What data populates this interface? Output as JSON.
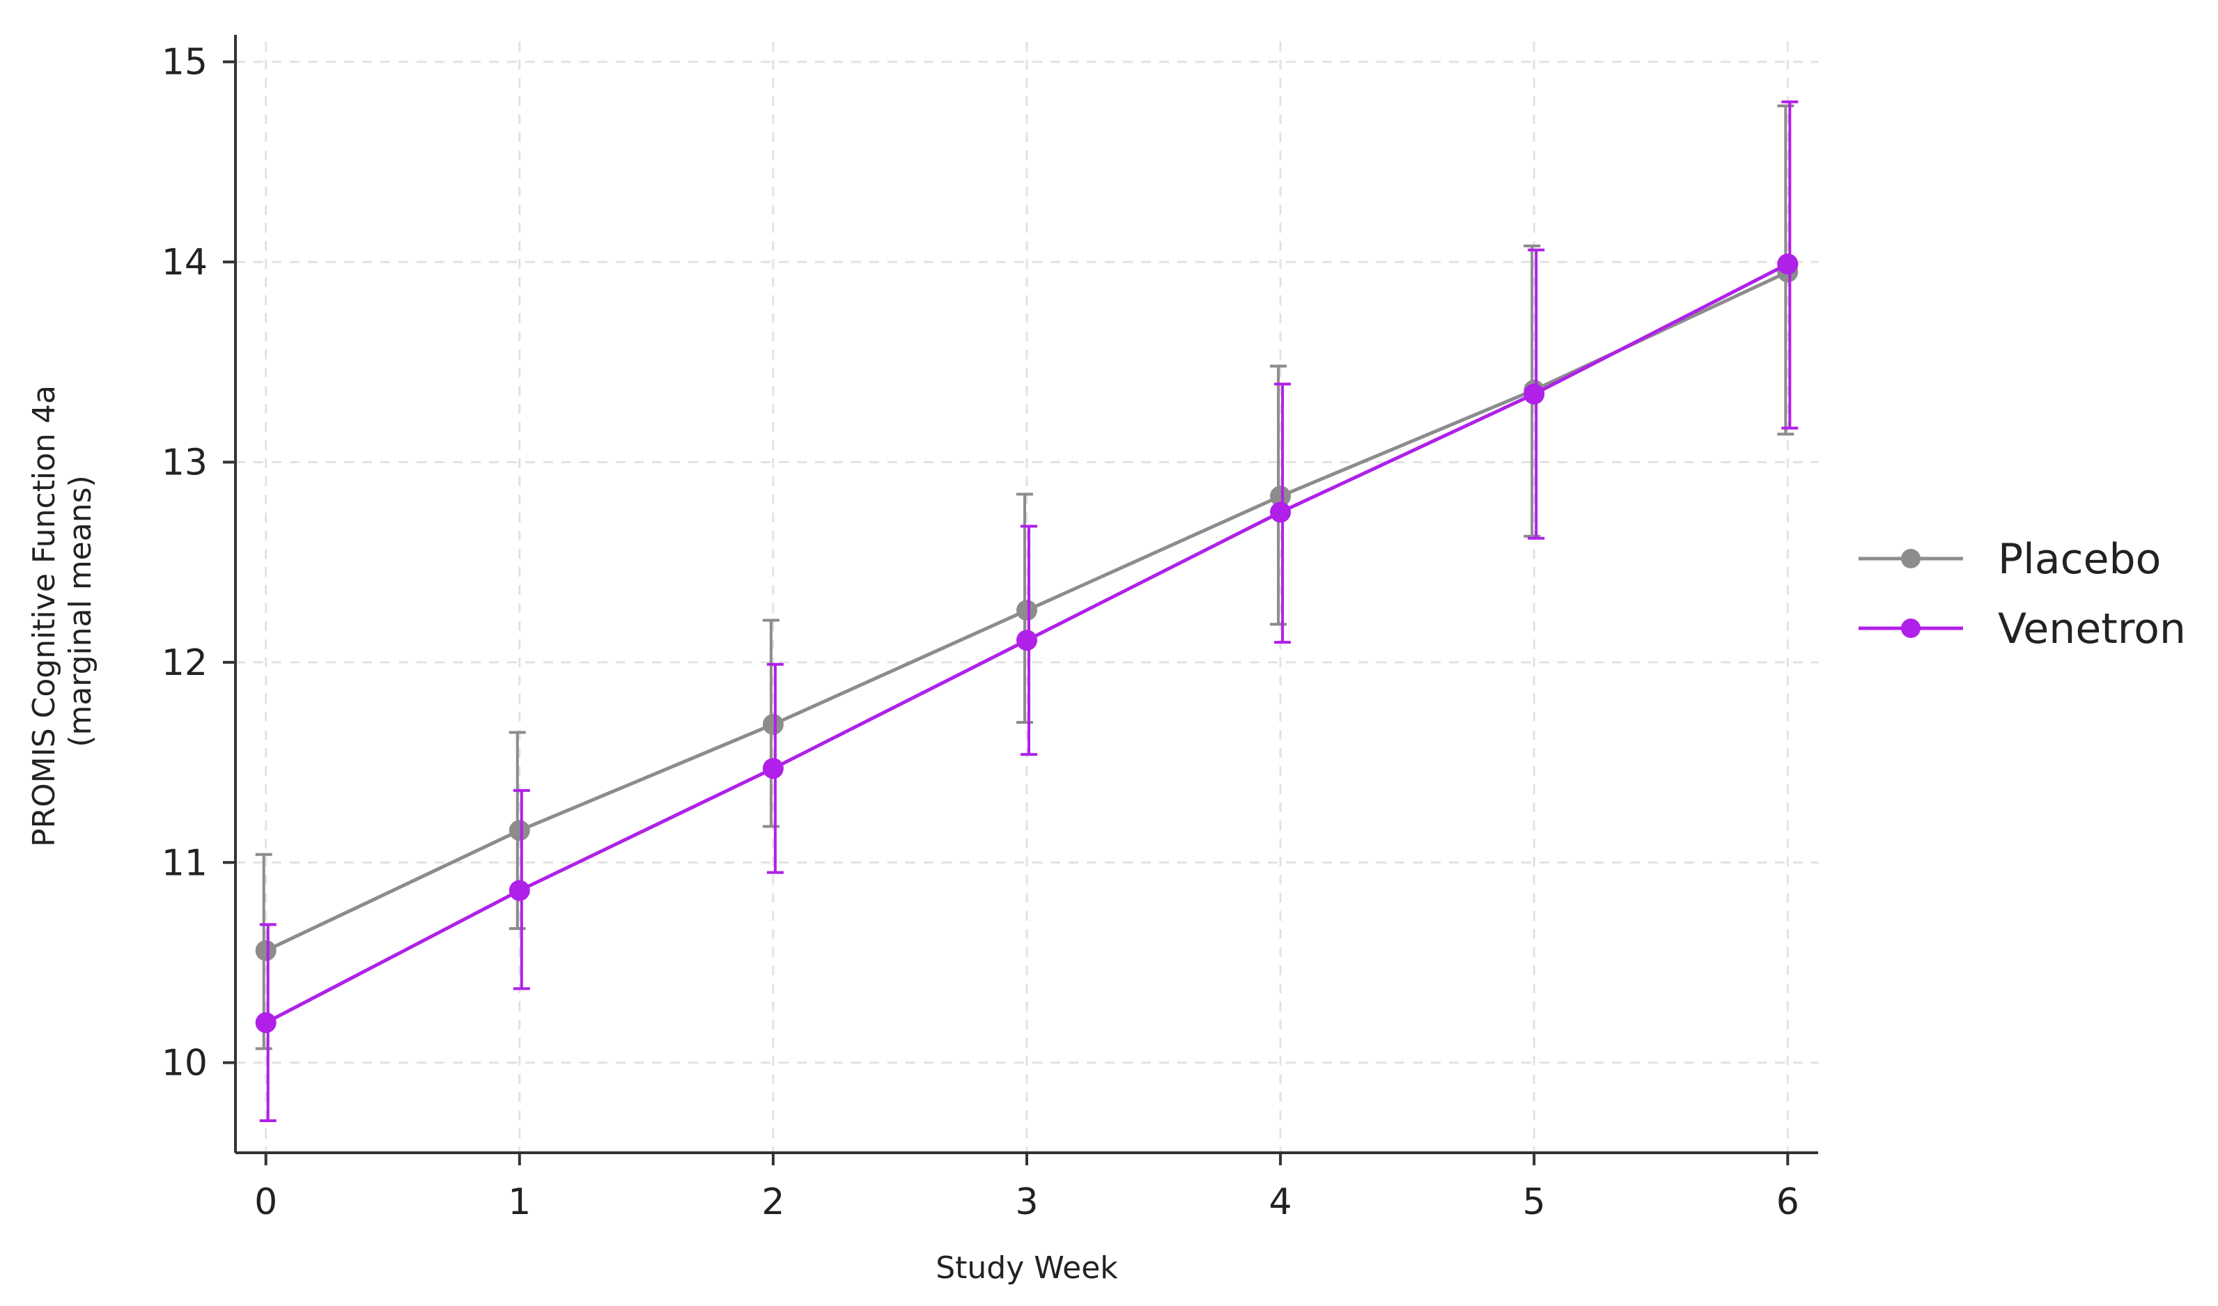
{
  "chart_data": {
    "type": "line",
    "xlabel": "Study Week",
    "ylabel": [
      "PROMIS Cognitive Function 4a",
      "(marginal means)"
    ],
    "x": [
      0,
      1,
      2,
      3,
      4,
      5,
      6
    ],
    "xlim": [
      -0.12,
      6.12
    ],
    "ylim": [
      9.55,
      15.1
    ],
    "yticks": [
      10,
      11,
      12,
      13,
      14,
      15
    ],
    "grid": true,
    "legend_position": "right",
    "series": [
      {
        "name": "Placebo",
        "color": "#8c8c8c",
        "values": [
          10.56,
          11.16,
          11.69,
          12.26,
          12.83,
          13.36,
          13.95
        ],
        "ci_low": [
          10.07,
          10.67,
          11.18,
          11.7,
          12.19,
          12.63,
          13.14
        ],
        "ci_high": [
          11.04,
          11.65,
          12.21,
          12.84,
          13.48,
          14.08,
          14.78
        ]
      },
      {
        "name": "Venetron",
        "color": "#b020e8",
        "values": [
          10.2,
          10.86,
          11.47,
          12.11,
          12.75,
          13.34,
          13.99
        ],
        "ci_low": [
          9.71,
          10.37,
          10.95,
          11.54,
          12.1,
          12.62,
          13.17
        ],
        "ci_high": [
          10.69,
          11.36,
          11.99,
          12.68,
          13.39,
          14.06,
          14.8
        ]
      }
    ]
  }
}
